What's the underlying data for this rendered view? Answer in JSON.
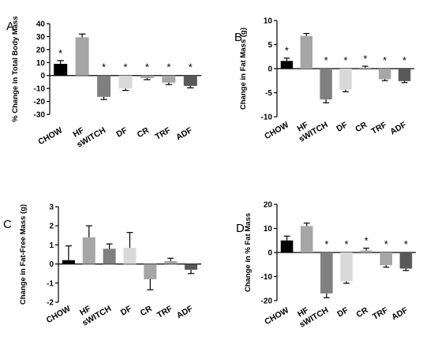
{
  "chart_data": [
    {
      "type": "bar",
      "panel_label": "A",
      "ylabel": "% Change in Total Body Mass",
      "ylim": [
        -30,
        40
      ],
      "yticks": [
        -30,
        -20,
        -10,
        0,
        10,
        20,
        30,
        40
      ],
      "categories": [
        "CHOW",
        "HF",
        "sWITCH",
        "DF",
        "CR",
        "TRF",
        "ADF"
      ],
      "values": [
        9,
        29.5,
        -16.5,
        -10,
        -2,
        -5.5,
        -8
      ],
      "errors": [
        2.5,
        2.5,
        2,
        1.5,
        1.2,
        1.5,
        1.5
      ],
      "stars": [
        "*",
        "",
        "*",
        "*",
        "*",
        "*",
        "*"
      ]
    },
    {
      "type": "bar",
      "panel_label": "B",
      "ylabel": "Change in Fat Mass (g)",
      "ylim": [
        -10,
        10
      ],
      "yticks": [
        -10,
        -5,
        0,
        5,
        10
      ],
      "categories": [
        "CHOW",
        "HF",
        "sWITCH",
        "DF",
        "CR",
        "TRF",
        "ADF"
      ],
      "values": [
        1.6,
        6.8,
        -6.4,
        -4.4,
        0.2,
        -2.2,
        -2.6
      ],
      "errors": [
        0.6,
        0.5,
        0.7,
        0.4,
        0.3,
        0.3,
        0.3
      ],
      "stars": [
        "*",
        "",
        "*",
        "*",
        "*",
        "*",
        "*"
      ]
    },
    {
      "type": "bar",
      "panel_label": "C",
      "ylabel": "Change in Fat-Free Mass (g)",
      "ylim": [
        -2,
        3
      ],
      "yticks": [
        -2,
        -1,
        0,
        1,
        2,
        3
      ],
      "categories": [
        "CHOW",
        "HF",
        "sWITCH",
        "DF",
        "CR",
        "TRF",
        "ADF"
      ],
      "values": [
        0.2,
        1.4,
        0.8,
        0.85,
        -0.8,
        0.15,
        -0.3
      ],
      "errors": [
        0.75,
        0.6,
        0.25,
        0.8,
        0.55,
        0.15,
        0.2
      ],
      "stars": [
        "",
        "",
        "",
        "",
        "",
        "",
        ""
      ]
    },
    {
      "type": "bar",
      "panel_label": "D",
      "ylabel": "Change in % Fat Mass",
      "ylim": [
        -20,
        20
      ],
      "yticks": [
        -20,
        -10,
        0,
        10,
        20
      ],
      "categories": [
        "CHOW",
        "HF",
        "sWITCH",
        "DF",
        "CR",
        "TRF",
        "ADF"
      ],
      "values": [
        5,
        11,
        -17,
        -12,
        0.8,
        -5.3,
        -6.7
      ],
      "errors": [
        1.8,
        1.2,
        1.8,
        0.8,
        1,
        0.8,
        0.8
      ],
      "stars": [
        "",
        "",
        "*",
        "*",
        "*",
        "*",
        "*"
      ]
    }
  ],
  "colors": [
    "#000000",
    "#a6a6a6",
    "#808080",
    "#d9d9d9",
    "#a6a6a6",
    "#a6a6a6",
    "#595959"
  ]
}
